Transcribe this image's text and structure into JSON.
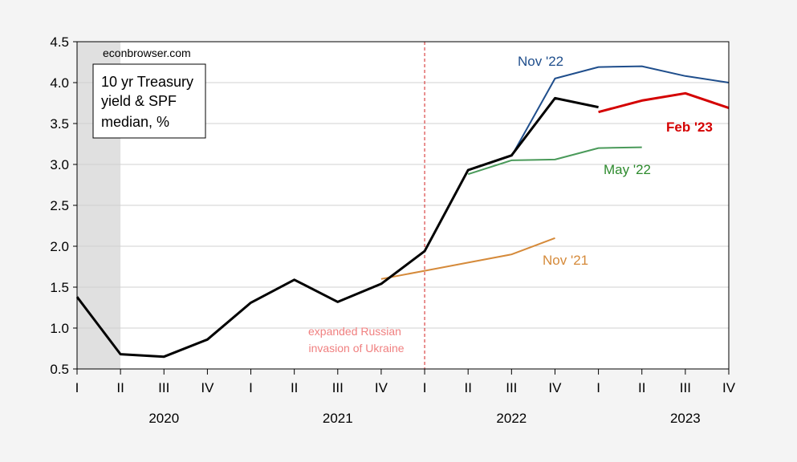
{
  "chart_data": {
    "type": "line",
    "title": "",
    "source_label": "econbrowser.com",
    "legend_box_lines": [
      "10 yr Treasury",
      "yield & SPF",
      "median, %"
    ],
    "x_quarter_labels": [
      "I",
      "II",
      "III",
      "IV",
      "I",
      "II",
      "III",
      "IV",
      "I",
      "II",
      "III",
      "IV",
      "I",
      "II",
      "III",
      "IV"
    ],
    "x_year_labels": [
      "2020",
      "2021",
      "2022",
      "2023"
    ],
    "y_ticks": [
      "0.5",
      "1.0",
      "1.5",
      "2.0",
      "2.5",
      "3.0",
      "3.5",
      "4.0",
      "4.5"
    ],
    "ylim": [
      0.5,
      4.5
    ],
    "x_range_quarters": [
      "2020Q1",
      "2023Q4"
    ],
    "recession_shading": {
      "from": "2020Q1",
      "to": "2020Q2",
      "color": "#e0e0e0"
    },
    "vertical_marker": {
      "at": "2022Q1",
      "color": "#d22020"
    },
    "annotation": {
      "lines": [
        "expanded Russian",
        "invasion of Ukraine"
      ],
      "color": "#f08080"
    },
    "series": [
      {
        "name": "10 yr Treasury yield",
        "color": "#000000",
        "bold": true,
        "x": [
          "2020Q1",
          "2020Q2",
          "2020Q3",
          "2020Q4",
          "2021Q1",
          "2021Q2",
          "2021Q3",
          "2021Q4",
          "2022Q1",
          "2022Q2",
          "2022Q3",
          "2022Q4",
          "2023Q1"
        ],
        "values": [
          1.38,
          0.68,
          0.65,
          0.86,
          1.31,
          1.59,
          1.32,
          1.54,
          1.94,
          2.93,
          3.11,
          3.81,
          3.7
        ]
      },
      {
        "name": "Nov '21",
        "color": "#d58a3a",
        "label_bold": false,
        "x": [
          "2021Q4",
          "2022Q1",
          "2022Q2",
          "2022Q3",
          "2022Q4"
        ],
        "values": [
          1.6,
          1.7,
          1.8,
          1.9,
          2.1
        ]
      },
      {
        "name": "May '22",
        "color": "#4a9a5a",
        "label_color": "#2e8b2e",
        "label_bold": false,
        "x": [
          "2022Q2",
          "2022Q3",
          "2022Q4",
          "2023Q1",
          "2023Q2"
        ],
        "values": [
          2.88,
          3.05,
          3.06,
          3.2,
          3.21
        ]
      },
      {
        "name": "Nov '22",
        "color": "#1f4e8c",
        "label_bold": false,
        "x": [
          "2022Q3",
          "2022Q4",
          "2023Q1",
          "2023Q2",
          "2023Q3",
          "2023Q4"
        ],
        "values": [
          3.1,
          4.05,
          4.19,
          4.2,
          4.08,
          4.0
        ]
      },
      {
        "name": "Feb '23",
        "color": "#d40000",
        "bold": true,
        "label_bold": true,
        "x": [
          "2023Q1",
          "2023Q2",
          "2023Q3",
          "2023Q4"
        ],
        "values": [
          3.64,
          3.78,
          3.87,
          3.69
        ]
      }
    ]
  }
}
